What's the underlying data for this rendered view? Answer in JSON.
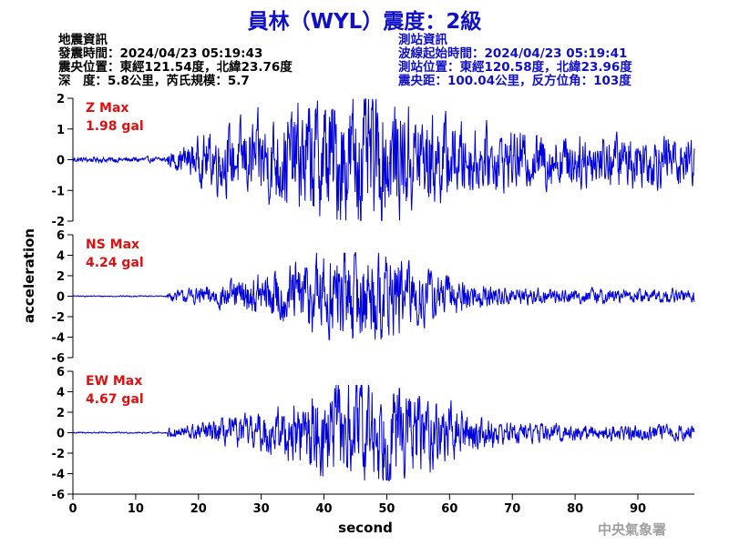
{
  "title": "員林（WYL）震度：2級",
  "info_left": {
    "heading": "地震資訊",
    "origin_time": "發震時間：2024/04/23 05:19:43",
    "epicenter": "震央位置：東經121.54度，北緯23.76度",
    "depth_magnitude": "深　度：5.8公里，芮氏規模：5.7"
  },
  "info_right": {
    "heading": "測站資訊",
    "wave_start": "波線起始時間：2024/04/23 05:19:41",
    "station_location": "測站位置：東經120.58度，北緯23.96度",
    "distance_azimuth": "震央距：100.04公里，反方位角：103度"
  },
  "agency": "中央氣象署",
  "colors": {
    "title": "#1010c8",
    "trace": "#0000dd",
    "max_label": "#e01010",
    "agency": "#a0a0a0"
  },
  "chart_data": {
    "type": "line",
    "xlabel": "second",
    "ylabel": "acceleration",
    "xlim": [
      0,
      99
    ],
    "xticks": [
      0,
      10,
      20,
      30,
      40,
      50,
      60,
      70,
      80,
      90
    ],
    "grid": false,
    "panels": [
      {
        "component": "Z",
        "max_label": "Z Max",
        "max_value": "1.98 gal",
        "peak": 1.98,
        "ylim": [
          -2,
          2
        ],
        "yticks": [
          -2,
          -1,
          0,
          1,
          2
        ],
        "onset": 15.0,
        "peak_time": 45,
        "noise": 0.08
      },
      {
        "component": "NS",
        "max_label": "NS Max",
        "max_value": "4.24 gal",
        "peak": 4.24,
        "ylim": [
          -6,
          6
        ],
        "yticks": [
          -6,
          -4,
          -2,
          0,
          2,
          4,
          6
        ],
        "onset": 15.0,
        "peak_time": 45,
        "noise": 0.05
      },
      {
        "component": "EW",
        "max_label": "EW Max",
        "max_value": "4.67 gal",
        "peak": 4.67,
        "ylim": [
          -6,
          6
        ],
        "yticks": [
          -6,
          -4,
          -2,
          0,
          2,
          4,
          6
        ],
        "onset": 15.0,
        "peak_time": 47,
        "noise": 0.06
      }
    ]
  }
}
